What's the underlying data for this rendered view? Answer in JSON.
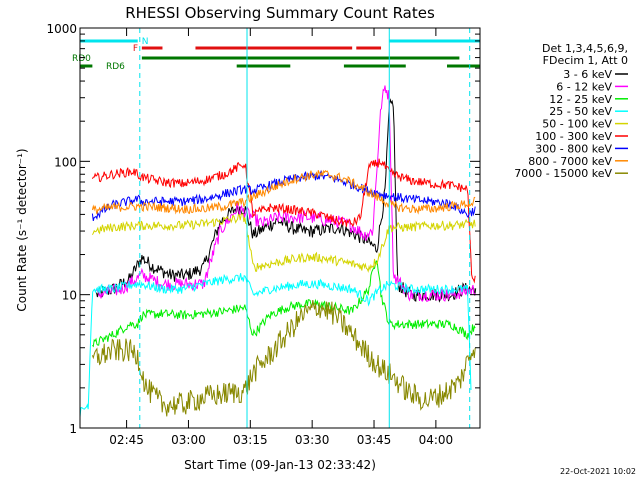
{
  "chart_data": {
    "type": "line",
    "title": "RHESSI Observing Summary Count Rates",
    "xlabel": "Start Time (09-Jan-13 02:33:42)",
    "ylabel": "Count Rate (s⁻¹ detector⁻¹)",
    "y_scale": "log",
    "ylim": [
      1,
      1000
    ],
    "xlim_minutes_after_start": [
      0,
      97
    ],
    "x_ticks": [
      {
        "label": "02:45",
        "t": 11.3
      },
      {
        "label": "03:00",
        "t": 26.3
      },
      {
        "label": "03:15",
        "t": 41.3
      },
      {
        "label": "03:30",
        "t": 56.3
      },
      {
        "label": "03:45",
        "t": 71.3
      },
      {
        "label": "04:00",
        "t": 86.3
      }
    ],
    "y_ticks": [
      {
        "label": "1",
        "v": 1
      },
      {
        "label": "10",
        "v": 10
      },
      {
        "label": "100",
        "v": 100
      },
      {
        "label": "1000",
        "v": 1000
      }
    ],
    "legend": {
      "placement": "right",
      "header": [
        "Det 1,3,4,5,6,9,",
        "FDecim 1, Att 0"
      ]
    },
    "flags": [
      {
        "label": "N",
        "color": "#00e5ee",
        "segments": [
          [
            0,
            14
          ],
          [
            75,
            97
          ]
        ]
      },
      {
        "label": "F",
        "color": "#e01010",
        "segments": [
          [
            15,
            20
          ],
          [
            28,
            66
          ],
          [
            67,
            73
          ]
        ]
      },
      {
        "label": "RD0",
        "color": "#007700",
        "segments": [
          [
            15,
            92
          ]
        ]
      },
      {
        "label": "RD6",
        "color": "#007700",
        "segments": [
          [
            0,
            3
          ],
          [
            38,
            51
          ],
          [
            64,
            79
          ],
          [
            89,
            97
          ]
        ]
      }
    ],
    "vlines_dashed": [
      14.5,
      94.5
    ],
    "vlines_solid": [
      40.5,
      75
    ],
    "series": [
      {
        "name": "3 - 6 keV",
        "color": "#000000",
        "points": [
          [
            4,
            10
          ],
          [
            8,
            11
          ],
          [
            12,
            13
          ],
          [
            15,
            19
          ],
          [
            18,
            16
          ],
          [
            22,
            14
          ],
          [
            26,
            14
          ],
          [
            30,
            16
          ],
          [
            34,
            35
          ],
          [
            38,
            45
          ],
          [
            40,
            44
          ],
          [
            42,
            28
          ],
          [
            45,
            32
          ],
          [
            48,
            36
          ],
          [
            51,
            32
          ],
          [
            54,
            30
          ],
          [
            57,
            30
          ],
          [
            60,
            31
          ],
          [
            63,
            32
          ],
          [
            66,
            29
          ],
          [
            69,
            26
          ],
          [
            72,
            22
          ],
          [
            74,
            60
          ],
          [
            75,
            250
          ],
          [
            76,
            280
          ],
          [
            77,
            12
          ],
          [
            80,
            10
          ],
          [
            85,
            10
          ],
          [
            90,
            10
          ],
          [
            93,
            11
          ],
          [
            96,
            11
          ]
        ]
      },
      {
        "name": "6 - 12 keV",
        "color": "#ff00ff",
        "points": [
          [
            4,
            10
          ],
          [
            10,
            11
          ],
          [
            15,
            14
          ],
          [
            20,
            12
          ],
          [
            25,
            12
          ],
          [
            30,
            12
          ],
          [
            34,
            30
          ],
          [
            38,
            44
          ],
          [
            40,
            42
          ],
          [
            44,
            34
          ],
          [
            48,
            38
          ],
          [
            52,
            38
          ],
          [
            56,
            38
          ],
          [
            60,
            36
          ],
          [
            63,
            35
          ],
          [
            66,
            33
          ],
          [
            69,
            28
          ],
          [
            71,
            30
          ],
          [
            73,
            260
          ],
          [
            74,
            370
          ],
          [
            75,
            300
          ],
          [
            76,
            14
          ],
          [
            80,
            10
          ],
          [
            90,
            10
          ],
          [
            96,
            11
          ]
        ]
      },
      {
        "name": "12 - 25 keV",
        "color": "#00ee00",
        "points": [
          [
            3,
            4.2
          ],
          [
            8,
            5
          ],
          [
            12,
            6
          ],
          [
            14,
            6
          ],
          [
            15,
            7
          ],
          [
            20,
            7.2
          ],
          [
            25,
            7
          ],
          [
            30,
            7.2
          ],
          [
            35,
            7.5
          ],
          [
            40,
            8
          ],
          [
            42,
            5
          ],
          [
            46,
            7
          ],
          [
            50,
            8
          ],
          [
            54,
            8.5
          ],
          [
            58,
            8.5
          ],
          [
            62,
            8
          ],
          [
            66,
            7.5
          ],
          [
            70,
            11
          ],
          [
            72,
            20
          ],
          [
            73,
            10
          ],
          [
            75,
            6
          ],
          [
            80,
            6
          ],
          [
            85,
            6
          ],
          [
            90,
            6
          ],
          [
            94,
            5
          ],
          [
            96,
            6
          ]
        ]
      },
      {
        "name": "25 - 50 keV",
        "color": "#00ffff",
        "points": [
          [
            0,
            1.3
          ],
          [
            2,
            1.5
          ],
          [
            3,
            11
          ],
          [
            8,
            11
          ],
          [
            13,
            12
          ],
          [
            15,
            12
          ],
          [
            20,
            11
          ],
          [
            25,
            11
          ],
          [
            30,
            12
          ],
          [
            35,
            13
          ],
          [
            40,
            13.5
          ],
          [
            42,
            10
          ],
          [
            46,
            11
          ],
          [
            50,
            11.5
          ],
          [
            54,
            12
          ],
          [
            58,
            12
          ],
          [
            62,
            11.5
          ],
          [
            66,
            11
          ],
          [
            70,
            9
          ],
          [
            73,
            11
          ],
          [
            75,
            12
          ],
          [
            80,
            11
          ],
          [
            85,
            11
          ],
          [
            90,
            11
          ],
          [
            94,
            11
          ],
          [
            95,
            1.2
          ]
        ]
      },
      {
        "name": "50 - 100 keV",
        "color": "#d4d400",
        "points": [
          [
            3,
            30
          ],
          [
            8,
            32
          ],
          [
            14,
            33
          ],
          [
            20,
            33
          ],
          [
            25,
            33
          ],
          [
            30,
            34
          ],
          [
            35,
            36
          ],
          [
            40,
            38
          ],
          [
            42,
            16
          ],
          [
            46,
            17
          ],
          [
            50,
            18
          ],
          [
            54,
            19
          ],
          [
            58,
            19
          ],
          [
            62,
            18
          ],
          [
            66,
            17
          ],
          [
            70,
            16
          ],
          [
            72,
            18
          ],
          [
            75,
            32
          ],
          [
            80,
            32
          ],
          [
            85,
            33
          ],
          [
            90,
            33
          ],
          [
            96,
            34
          ]
        ]
      },
      {
        "name": "100 - 300 keV",
        "color": "#ff0000",
        "points": [
          [
            3,
            74
          ],
          [
            8,
            80
          ],
          [
            13,
            84
          ],
          [
            15,
            76
          ],
          [
            20,
            70
          ],
          [
            25,
            68
          ],
          [
            30,
            72
          ],
          [
            35,
            80
          ],
          [
            40,
            96
          ],
          [
            42,
            40
          ],
          [
            46,
            45
          ],
          [
            50,
            44
          ],
          [
            54,
            42
          ],
          [
            58,
            40
          ],
          [
            62,
            36
          ],
          [
            66,
            34
          ],
          [
            68,
            38
          ],
          [
            70,
            90
          ],
          [
            73,
            100
          ],
          [
            75,
            82
          ],
          [
            80,
            72
          ],
          [
            85,
            68
          ],
          [
            90,
            66
          ],
          [
            94,
            62
          ],
          [
            95,
            13
          ],
          [
            96,
            13
          ]
        ]
      },
      {
        "name": "300 - 800 keV",
        "color": "#0000ff",
        "points": [
          [
            3,
            38
          ],
          [
            8,
            47
          ],
          [
            14,
            52
          ],
          [
            15,
            50
          ],
          [
            20,
            50
          ],
          [
            25,
            50
          ],
          [
            30,
            52
          ],
          [
            35,
            57
          ],
          [
            40,
            62
          ],
          [
            42,
            60
          ],
          [
            46,
            66
          ],
          [
            50,
            72
          ],
          [
            54,
            76
          ],
          [
            58,
            78
          ],
          [
            62,
            74
          ],
          [
            66,
            67
          ],
          [
            70,
            60
          ],
          [
            75,
            55
          ],
          [
            80,
            52
          ],
          [
            85,
            50
          ],
          [
            90,
            48
          ],
          [
            94,
            40
          ],
          [
            95,
            42
          ],
          [
            96,
            44
          ]
        ]
      },
      {
        "name": "800 - 7000 keV",
        "color": "#ff8800",
        "points": [
          [
            3,
            43
          ],
          [
            8,
            45
          ],
          [
            14,
            46
          ],
          [
            20,
            45
          ],
          [
            25,
            44
          ],
          [
            30,
            44
          ],
          [
            35,
            46
          ],
          [
            40,
            50
          ],
          [
            44,
            58
          ],
          [
            48,
            66
          ],
          [
            52,
            74
          ],
          [
            56,
            79
          ],
          [
            60,
            80
          ],
          [
            64,
            74
          ],
          [
            68,
            64
          ],
          [
            72,
            54
          ],
          [
            76,
            46
          ],
          [
            80,
            44
          ],
          [
            85,
            44
          ],
          [
            90,
            46
          ],
          [
            94,
            48
          ],
          [
            96,
            50
          ]
        ]
      },
      {
        "name": "7000 - 15000 keV",
        "color": "#888800",
        "points": [
          [
            3,
            3.3
          ],
          [
            8,
            3.8
          ],
          [
            12,
            3.8
          ],
          [
            14,
            3.5
          ],
          [
            16,
            2
          ],
          [
            20,
            1.5
          ],
          [
            25,
            1.5
          ],
          [
            30,
            1.7
          ],
          [
            35,
            1.8
          ],
          [
            40,
            1.9
          ],
          [
            42,
            2.6
          ],
          [
            46,
            3.5
          ],
          [
            50,
            5
          ],
          [
            54,
            7
          ],
          [
            58,
            8.2
          ],
          [
            62,
            7
          ],
          [
            66,
            5
          ],
          [
            70,
            3.5
          ],
          [
            73,
            2.8
          ],
          [
            76,
            2.4
          ],
          [
            80,
            1.8
          ],
          [
            84,
            1.6
          ],
          [
            88,
            1.8
          ],
          [
            92,
            2.2
          ],
          [
            95,
            3.8
          ],
          [
            96,
            4.3
          ]
        ]
      }
    ]
  },
  "footer": {
    "timestamp": "22-Oct-2021 10:02"
  }
}
